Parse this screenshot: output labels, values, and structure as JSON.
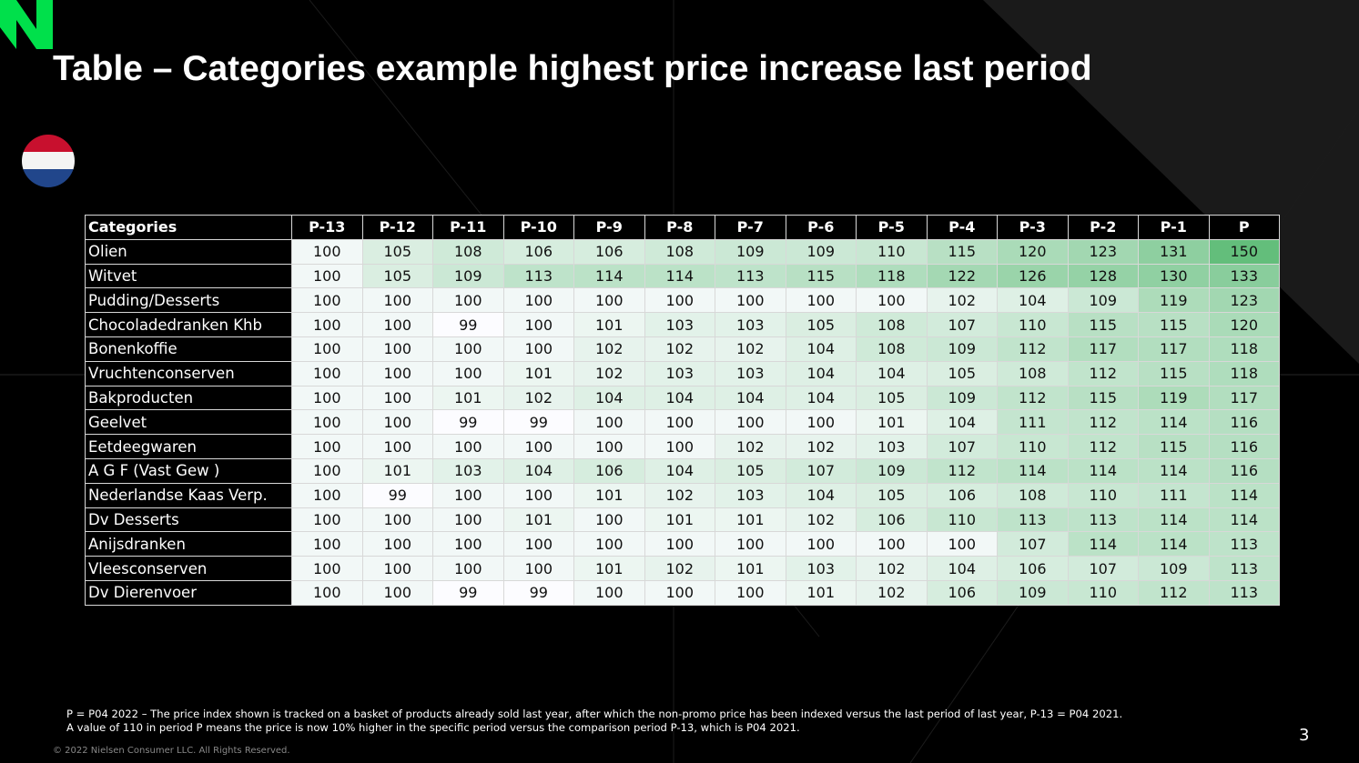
{
  "header": {
    "title": "Table – Categories example highest price increase last period"
  },
  "table": {
    "columns": [
      "Categories",
      "P-13",
      "P-12",
      "P-11",
      "P-10",
      "P-9",
      "P-8",
      "P-7",
      "P-6",
      "P-5",
      "P-4",
      "P-3",
      "P-2",
      "P-1",
      "P"
    ],
    "rows": [
      [
        "Olien",
        100,
        105,
        108,
        106,
        106,
        108,
        109,
        109,
        110,
        115,
        120,
        123,
        131,
        150
      ],
      [
        "Witvet",
        100,
        105,
        109,
        113,
        114,
        114,
        113,
        115,
        118,
        122,
        126,
        128,
        130,
        133
      ],
      [
        "Pudding/Desserts",
        100,
        100,
        100,
        100,
        100,
        100,
        100,
        100,
        100,
        102,
        104,
        109,
        119,
        123
      ],
      [
        "Chocoladedranken Khb",
        100,
        100,
        99,
        100,
        101,
        103,
        103,
        105,
        108,
        107,
        110,
        115,
        115,
        120
      ],
      [
        "Bonenkoffie",
        100,
        100,
        100,
        100,
        102,
        102,
        102,
        104,
        108,
        109,
        112,
        117,
        117,
        118
      ],
      [
        "Vruchtenconserven",
        100,
        100,
        100,
        101,
        102,
        103,
        103,
        104,
        104,
        105,
        108,
        112,
        115,
        118
      ],
      [
        "Bakproducten",
        100,
        100,
        101,
        102,
        104,
        104,
        104,
        104,
        105,
        109,
        112,
        115,
        119,
        117
      ],
      [
        "Geelvet",
        100,
        100,
        99,
        99,
        100,
        100,
        100,
        100,
        101,
        104,
        111,
        112,
        114,
        116
      ],
      [
        "Eetdeegwaren",
        100,
        100,
        100,
        100,
        100,
        100,
        102,
        102,
        103,
        107,
        110,
        112,
        115,
        116
      ],
      [
        "A G F (Vast Gew )",
        100,
        101,
        103,
        104,
        106,
        104,
        105,
        107,
        109,
        112,
        114,
        114,
        114,
        116
      ],
      [
        "Nederlandse Kaas Verp.",
        100,
        99,
        100,
        100,
        101,
        102,
        103,
        104,
        105,
        106,
        108,
        110,
        111,
        114
      ],
      [
        "Dv Desserts",
        100,
        100,
        100,
        101,
        100,
        101,
        101,
        102,
        106,
        110,
        113,
        113,
        114,
        114
      ],
      [
        "Anijsdranken",
        100,
        100,
        100,
        100,
        100,
        100,
        100,
        100,
        100,
        100,
        107,
        114,
        114,
        113
      ],
      [
        "Vleesconserven",
        100,
        100,
        100,
        100,
        101,
        102,
        101,
        103,
        102,
        104,
        106,
        107,
        109,
        113
      ],
      [
        "Dv Dierenvoer",
        100,
        100,
        99,
        99,
        100,
        100,
        100,
        101,
        102,
        106,
        109,
        110,
        112,
        113
      ]
    ]
  },
  "footnotes": [
    "P = P04 2022 – The price index shown is tracked on a basket of products already sold last year, after which the non-promo price has been indexed versus the last period of last year, P-13 = P04 2021.",
    "A value of 110 in period P means the price is now 10% higher in the specific period versus the comparison period P-13, which is P04 2021."
  ],
  "copyright": "© 2022 Nielsen Consumer LLC. All Rights Reserved.",
  "page_number": "3"
}
